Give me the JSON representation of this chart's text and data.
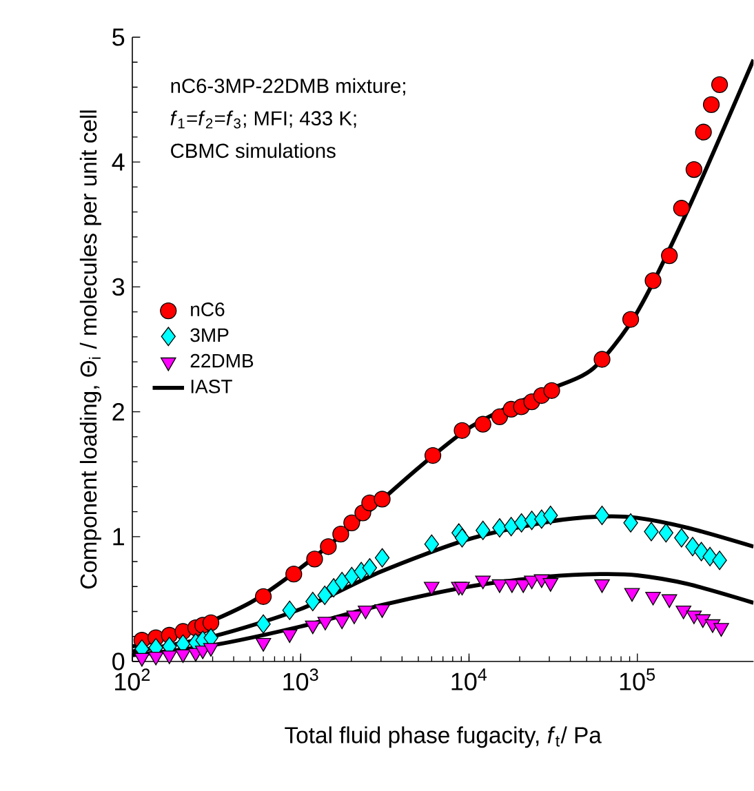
{
  "chart_data": {
    "type": "scatter",
    "xlabel": "Total fluid phase fugacity, *f*$_{t}$/ Pa",
    "ylabel": "Component loading, Θ$_{i}$ / molecules per unit cell",
    "annotations": [
      "nC6-3MP-22DMB mixture;",
      "*f*$_{1}$=*f*$_{2}$=*f*$_{3}$; MFI; 433 K;",
      "CBMC simulations"
    ],
    "log": "x",
    "xlim": [
      100,
      490000
    ],
    "ylim": [
      0,
      5
    ],
    "xticks": [
      {
        "value": 100,
        "label": "10$^{2}$"
      },
      {
        "value": 1000,
        "label": "10$^{3}$"
      },
      {
        "value": 10000,
        "label": "10$^{4}$"
      },
      {
        "value": 100000,
        "label": "10$^{5}$"
      }
    ],
    "yticks": [
      0,
      1,
      2,
      3,
      4,
      5
    ],
    "grid": false,
    "legend": "left",
    "series": [
      {
        "name": "nC6",
        "marker": "circle",
        "color": "#ff0000",
        "x": [
          114,
          138,
          166,
          200,
          238,
          262,
          293,
          600,
          910,
          1210,
          1460,
          1730,
          2010,
          2340,
          2570,
          3050,
          6100,
          9100,
          12100,
          15200,
          17800,
          20500,
          23600,
          27000,
          31000,
          61700,
          91300,
          124000,
          155000,
          183000,
          217000,
          247000,
          275000,
          308000
        ],
        "values": [
          0.17,
          0.19,
          0.21,
          0.24,
          0.27,
          0.29,
          0.31,
          0.52,
          0.7,
          0.82,
          0.92,
          1.02,
          1.11,
          1.19,
          1.27,
          1.3,
          1.65,
          1.85,
          1.9,
          1.96,
          2.02,
          2.04,
          2.08,
          2.13,
          2.17,
          2.42,
          2.74,
          3.05,
          3.25,
          3.63,
          3.94,
          4.24,
          4.46,
          4.62
        ]
      },
      {
        "name": "3MP",
        "marker": "diamond",
        "color": "#00ffff",
        "x": [
          114,
          138,
          166,
          200,
          238,
          262,
          293,
          600,
          860,
          1180,
          1390,
          1570,
          1760,
          2010,
          2290,
          2570,
          3050,
          6000,
          8700,
          9100,
          12100,
          15200,
          17800,
          20500,
          23600,
          27000,
          30500,
          61700,
          91300,
          121000,
          148000,
          183000,
          213000,
          240000,
          270000,
          308000
        ],
        "values": [
          0.1,
          0.11,
          0.12,
          0.14,
          0.15,
          0.17,
          0.19,
          0.3,
          0.41,
          0.48,
          0.53,
          0.59,
          0.64,
          0.68,
          0.72,
          0.75,
          0.83,
          0.94,
          1.03,
          0.99,
          1.05,
          1.07,
          1.08,
          1.11,
          1.13,
          1.14,
          1.17,
          1.17,
          1.11,
          1.04,
          1.03,
          0.99,
          0.92,
          0.88,
          0.84,
          0.81
        ]
      },
      {
        "name": "22DMB",
        "marker": "triangle",
        "color": "#ff00ff",
        "x": [
          114,
          138,
          166,
          200,
          238,
          262,
          293,
          600,
          860,
          1180,
          1400,
          1760,
          2080,
          2430,
          3050,
          6000,
          8700,
          9100,
          12100,
          15200,
          18000,
          21000,
          23600,
          27000,
          30500,
          61700,
          93000,
          124000,
          155000,
          188000,
          217000,
          245000,
          280000,
          315000
        ],
        "values": [
          0.03,
          0.04,
          0.05,
          0.06,
          0.07,
          0.09,
          0.11,
          0.15,
          0.22,
          0.29,
          0.32,
          0.33,
          0.37,
          0.41,
          0.42,
          0.6,
          0.6,
          0.6,
          0.65,
          0.62,
          0.62,
          0.62,
          0.65,
          0.66,
          0.63,
          0.62,
          0.55,
          0.52,
          0.5,
          0.41,
          0.37,
          0.34,
          0.3,
          0.27
        ]
      },
      {
        "name": "IAST",
        "type": "line",
        "marker": "none",
        "color": "#000000",
        "x": [
          100,
          200,
          500,
          1000,
          2000,
          5000,
          10000,
          20000,
          30000,
          55000,
          100000,
          200000,
          490000
        ],
        "values": [
          0.12,
          0.23,
          0.47,
          0.75,
          1.08,
          1.55,
          1.87,
          2.08,
          2.18,
          2.35,
          2.8,
          3.62,
          4.82
        ]
      },
      {
        "type": "line",
        "marker": "none",
        "color": "#000000",
        "x": [
          100,
          300,
          1000,
          3000,
          10000,
          30000,
          60000,
          100000,
          200000,
          490000
        ],
        "values": [
          0.08,
          0.2,
          0.42,
          0.72,
          0.98,
          1.12,
          1.16,
          1.15,
          1.07,
          0.92
        ]
      },
      {
        "type": "line",
        "marker": "none",
        "color": "#000000",
        "x": [
          100,
          300,
          1000,
          3000,
          10000,
          30000,
          60000,
          100000,
          200000,
          490000
        ],
        "values": [
          0.05,
          0.13,
          0.28,
          0.45,
          0.6,
          0.68,
          0.7,
          0.69,
          0.62,
          0.47
        ]
      }
    ]
  }
}
